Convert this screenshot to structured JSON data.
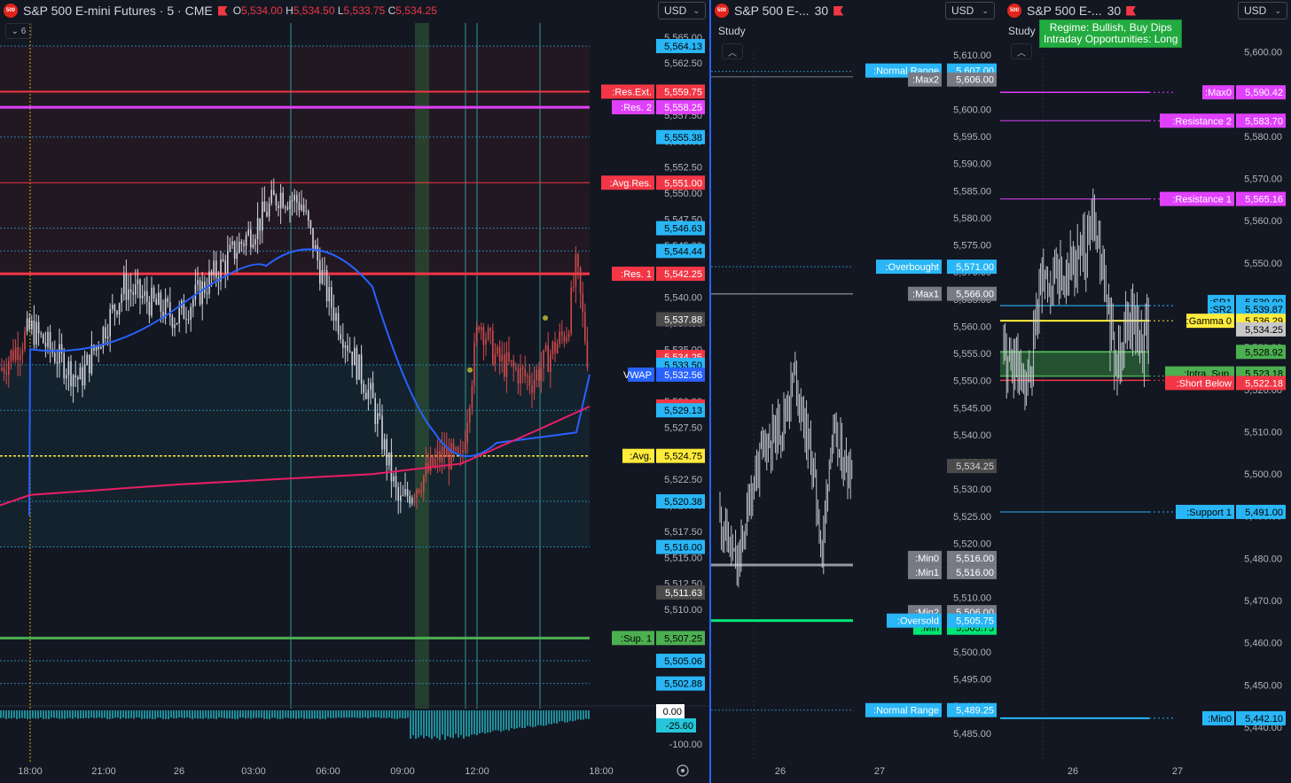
{
  "left_chart": {
    "symbol": "S&P 500 E-mini Futures · 5 · CME",
    "ohlc": {
      "o_label": "O",
      "o": "5,534.00",
      "h_label": "H",
      "h": "5,534.50",
      "l_label": "L",
      "l": "5,533.75",
      "c_label": "C",
      "c": "5,534.25"
    },
    "currency": "USD",
    "indicator_count": "6",
    "price_axis_ticks": [
      "5,565.00",
      "5,562.50",
      "5,560.00",
      "5,557.50",
      "5,555.00",
      "5,552.50",
      "5,550.00",
      "5,547.50",
      "5,545.00",
      "5,542.50",
      "5,540.00",
      "5,537.50",
      "5,535.00",
      "5,532.50",
      "5,530.00",
      "5,527.50",
      "5,525.00",
      "5,522.50",
      "5,520.00",
      "5,517.50",
      "5,515.00",
      "5,512.50",
      "5,510.00",
      "5,507.50",
      "5,505.00"
    ],
    "time_axis": [
      "18:00",
      "21:00",
      "26",
      "03:00",
      "06:00",
      "09:00",
      "12:00",
      "18:00"
    ],
    "levels": [
      {
        "label": ":Res.Ext.",
        "value": "5,559.75",
        "color": "#f23645"
      },
      {
        "label": ":Res. 2",
        "value": "5,558.25",
        "color": "#e040fb"
      },
      {
        "label": ":Avg.Res.",
        "value": "5,551.00",
        "color": "#f23645"
      },
      {
        "label": ":Res. 1",
        "value": "5,542.25",
        "color": "#f23645"
      },
      {
        "label": "VWAP",
        "value": "5,532.56",
        "color": "#2962ff"
      },
      {
        "label": ":Avg.",
        "value": "5,524.75",
        "color": "#ffeb3b"
      },
      {
        "label": ":Sup. 1",
        "value": "5,507.25",
        "color": "#4caf50"
      }
    ],
    "plain_tags": [
      {
        "value": "5,564.13",
        "color": "#29b6f6"
      },
      {
        "value": "5,555.38",
        "color": "#29b6f6"
      },
      {
        "value": "5,546.63",
        "color": "#29b6f6"
      },
      {
        "value": "5,544.44",
        "color": "#29b6f6"
      },
      {
        "value": "5,537.88",
        "color": "#4a4a4a"
      },
      {
        "value": "5,534.25",
        "color": "#f23645"
      },
      {
        "value": "5,533.50",
        "color": "#29b6f6"
      },
      {
        "value": "5,529.50",
        "color": "#f23645"
      },
      {
        "value": "5,529.13",
        "color": "#29b6f6"
      },
      {
        "value": "5,520.38",
        "color": "#29b6f6"
      },
      {
        "value": "5,516.00",
        "color": "#29b6f6"
      },
      {
        "value": "5,511.63",
        "color": "#4a4a4a"
      },
      {
        "value": "5,505.06",
        "color": "#29b6f6"
      },
      {
        "value": "5,502.88",
        "color": "#29b6f6"
      }
    ],
    "oscillator": {
      "value": "0.00",
      "current": "-25.60",
      "tick": "-100.00"
    }
  },
  "mid_chart": {
    "symbol": "S&P 500 E-...",
    "interval": "30",
    "study_label": "Study",
    "currency": "USD",
    "price_axis_ticks": [
      "5,610.00",
      "5,605.00",
      "5,600.00",
      "5,595.00",
      "5,590.00",
      "5,585.00",
      "5,580.00",
      "5,575.00",
      "5,570.00",
      "5,565.00",
      "5,560.00",
      "5,555.00",
      "5,550.00",
      "5,545.00",
      "5,540.00",
      "5,535.00",
      "5,530.00",
      "5,525.00",
      "5,520.00",
      "5,515.00",
      "5,510.00",
      "5,505.00",
      "5,500.00",
      "5,495.00",
      "5,490.00",
      "5,485.00"
    ],
    "time_axis": [
      "26",
      "27"
    ],
    "levels": [
      {
        "label": ":Normal Range",
        "value": "5,607.00",
        "color": "#29b6f6"
      },
      {
        "label": ":Max2",
        "value": "5,606.00",
        "color": "#787b86"
      },
      {
        "label": ":Overbought",
        "value": "5,571.00",
        "color": "#29b6f6"
      },
      {
        "label": ":Max1",
        "value": "5,566.00",
        "color": "#787b86"
      },
      {
        "label": ":Min0",
        "value": "5,516.00",
        "color": "#787b86"
      },
      {
        "label": ":Min1",
        "value": "5,516.00",
        "color": "#787b86"
      },
      {
        "label": ":Min2",
        "value": "5,506.00",
        "color": "#787b86"
      },
      {
        "label": ":Min",
        "value": "5,505.75",
        "color": "#00e676"
      },
      {
        "label": ":Oversold",
        "value": "5,505.75",
        "color": "#29b6f6"
      },
      {
        "label": ":Normal Range",
        "value": "5,489.25",
        "color": "#29b6f6"
      }
    ],
    "last_price": "5,534.25"
  },
  "right_chart": {
    "symbol": "S&P 500 E-...",
    "interval": "30",
    "study_label": "Study",
    "currency": "USD",
    "regime_line1": "Regime: Bullish, Buy Dips",
    "regime_line2": "Intraday Opportunities: Long",
    "price_axis_ticks": [
      "5,600.00",
      "5,590.00",
      "5,580.00",
      "5,570.00",
      "5,560.00",
      "5,550.00",
      "5,540.00",
      "5,530.00",
      "5,520.00",
      "5,510.00",
      "5,500.00",
      "5,490.00",
      "5,480.00",
      "5,470.00",
      "5,460.00",
      "5,450.00",
      "5,440.00"
    ],
    "time_axis": [
      "26",
      "27"
    ],
    "levels": [
      {
        "label": ":Max0",
        "value": "5,590.42",
        "color": "#e040fb"
      },
      {
        "label": ":Resistance 2",
        "value": "5,583.70",
        "color": "#e040fb"
      },
      {
        "label": ":Resistance 1",
        "value": "5,565.16",
        "color": "#e040fb"
      },
      {
        "label": ":SR1",
        "value": "5,539.90",
        "color": "#29b6f6"
      },
      {
        "label": ":SR2",
        "value": "5,539.87",
        "color": "#29b6f6"
      },
      {
        "label": ":Gamma 0",
        "value": "5,536.29",
        "color": "#ffeb3b"
      },
      {
        "label": ":Intra. Sup.",
        "value": "5,523.18",
        "color": "#4caf50"
      },
      {
        "label": ":Short Below",
        "value": "5,522.18",
        "color": "#f23645"
      },
      {
        "label": ":Support 1",
        "value": "5,491.00",
        "color": "#29b6f6"
      },
      {
        "label": ":Min0",
        "value": "5,442.10",
        "color": "#29b6f6"
      }
    ],
    "extra_tags": [
      {
        "value": "5,534.25",
        "color": "#c8c8c8"
      },
      {
        "value": "5,528.92",
        "color": "#4caf50"
      }
    ]
  },
  "chart_data": [
    {
      "type": "line",
      "title": "S&P 500 E-mini Futures · 5 · CME",
      "ylim": [
        5502.5,
        5566
      ],
      "series": [
        {
          "name": "VWAP",
          "values": [
            5532.56
          ]
        }
      ],
      "candles_approx": {
        "open": 5534.0,
        "high": 5534.5,
        "low": 5533.75,
        "close": 5534.25
      }
    },
    {
      "type": "line",
      "title": "S&P 500 E-... 30",
      "ylim": [
        5483,
        5612
      ]
    },
    {
      "type": "line",
      "title": "S&P 500 E-... 30",
      "ylim": [
        5436,
        5606
      ]
    }
  ]
}
